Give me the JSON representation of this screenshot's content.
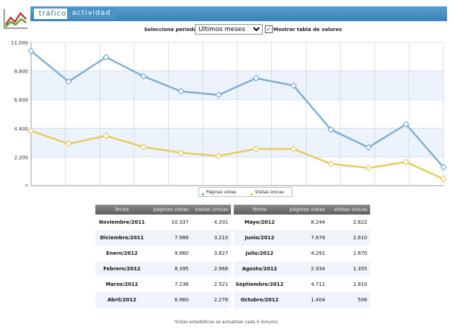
{
  "tabs": [
    {
      "label": "tráfico",
      "active": true
    },
    {
      "label": "actividad",
      "active": false
    }
  ],
  "period": {
    "label": "Selecciona período:",
    "selected": "Últimos meses",
    "show_table_label": "Mostrar tabla de valores",
    "show_table_checked": true
  },
  "colors": {
    "accent": "#3d86bd",
    "page_views": "#7eaed3",
    "unique_visits": "#e8c95a",
    "band": "#edf3fc"
  },
  "icons": {
    "logo": "chart-logo-icon",
    "dropdown": "chevron-down-icon",
    "checkbox": "checkbox-icon"
  },
  "chart_data": {
    "type": "line",
    "categories": [
      "Noviembre/2011",
      "Diciembre/2011",
      "Enero/2012",
      "Febrero/2012",
      "Marzo/2012",
      "Abril/2012",
      "Mayo/2012",
      "Junio/2012",
      "Julio/2012",
      "Agosto/2012",
      "Septiembre/2012",
      "Octubre/2012"
    ],
    "series": [
      {
        "name": "Páginas vistas",
        "values": [
          10337,
          7988,
          9860,
          8395,
          7236,
          6960,
          8244,
          7678,
          4291,
          2934,
          4711,
          1404
        ]
      },
      {
        "name": "Visitas únicas",
        "values": [
          4201,
          3210,
          3827,
          2966,
          2521,
          2276,
          2822,
          2810,
          1670,
          1355,
          1810,
          508
        ]
      }
    ],
    "yticks": [
      "0",
      "2.200",
      "4.400",
      "6.600",
      "8.800",
      "11.000"
    ],
    "ylim": [
      0,
      11000
    ],
    "grid": true,
    "legend": "bottom-center"
  },
  "table": {
    "headers": [
      "fecha",
      "páginas vistas",
      "visitas únicas",
      "fecha",
      "páginas vistas",
      "visitas únicas"
    ],
    "rows": [
      [
        "Noviembre/2011",
        "10.337",
        "4.201",
        "Mayo/2012",
        "8.244",
        "2.822"
      ],
      [
        "Diciembre/2011",
        "7.988",
        "3.210",
        "Junio/2012",
        "7.678",
        "2.810"
      ],
      [
        "Enero/2012",
        "9.860",
        "3.827",
        "Julio/2012",
        "4.291",
        "1.670"
      ],
      [
        "Febrero/2012",
        "8.395",
        "2.966",
        "Agosto/2012",
        "2.934",
        "1.355"
      ],
      [
        "Marzo/2012",
        "7.236",
        "2.521",
        "Septiembre/2012",
        "4.711",
        "1.810"
      ],
      [
        "Abril/2012",
        "6.960",
        "2.276",
        "Octubre/2012",
        "1.404",
        "508"
      ]
    ]
  },
  "footnote": "*Estas estadísticas se actualizan cada 5 minutos"
}
